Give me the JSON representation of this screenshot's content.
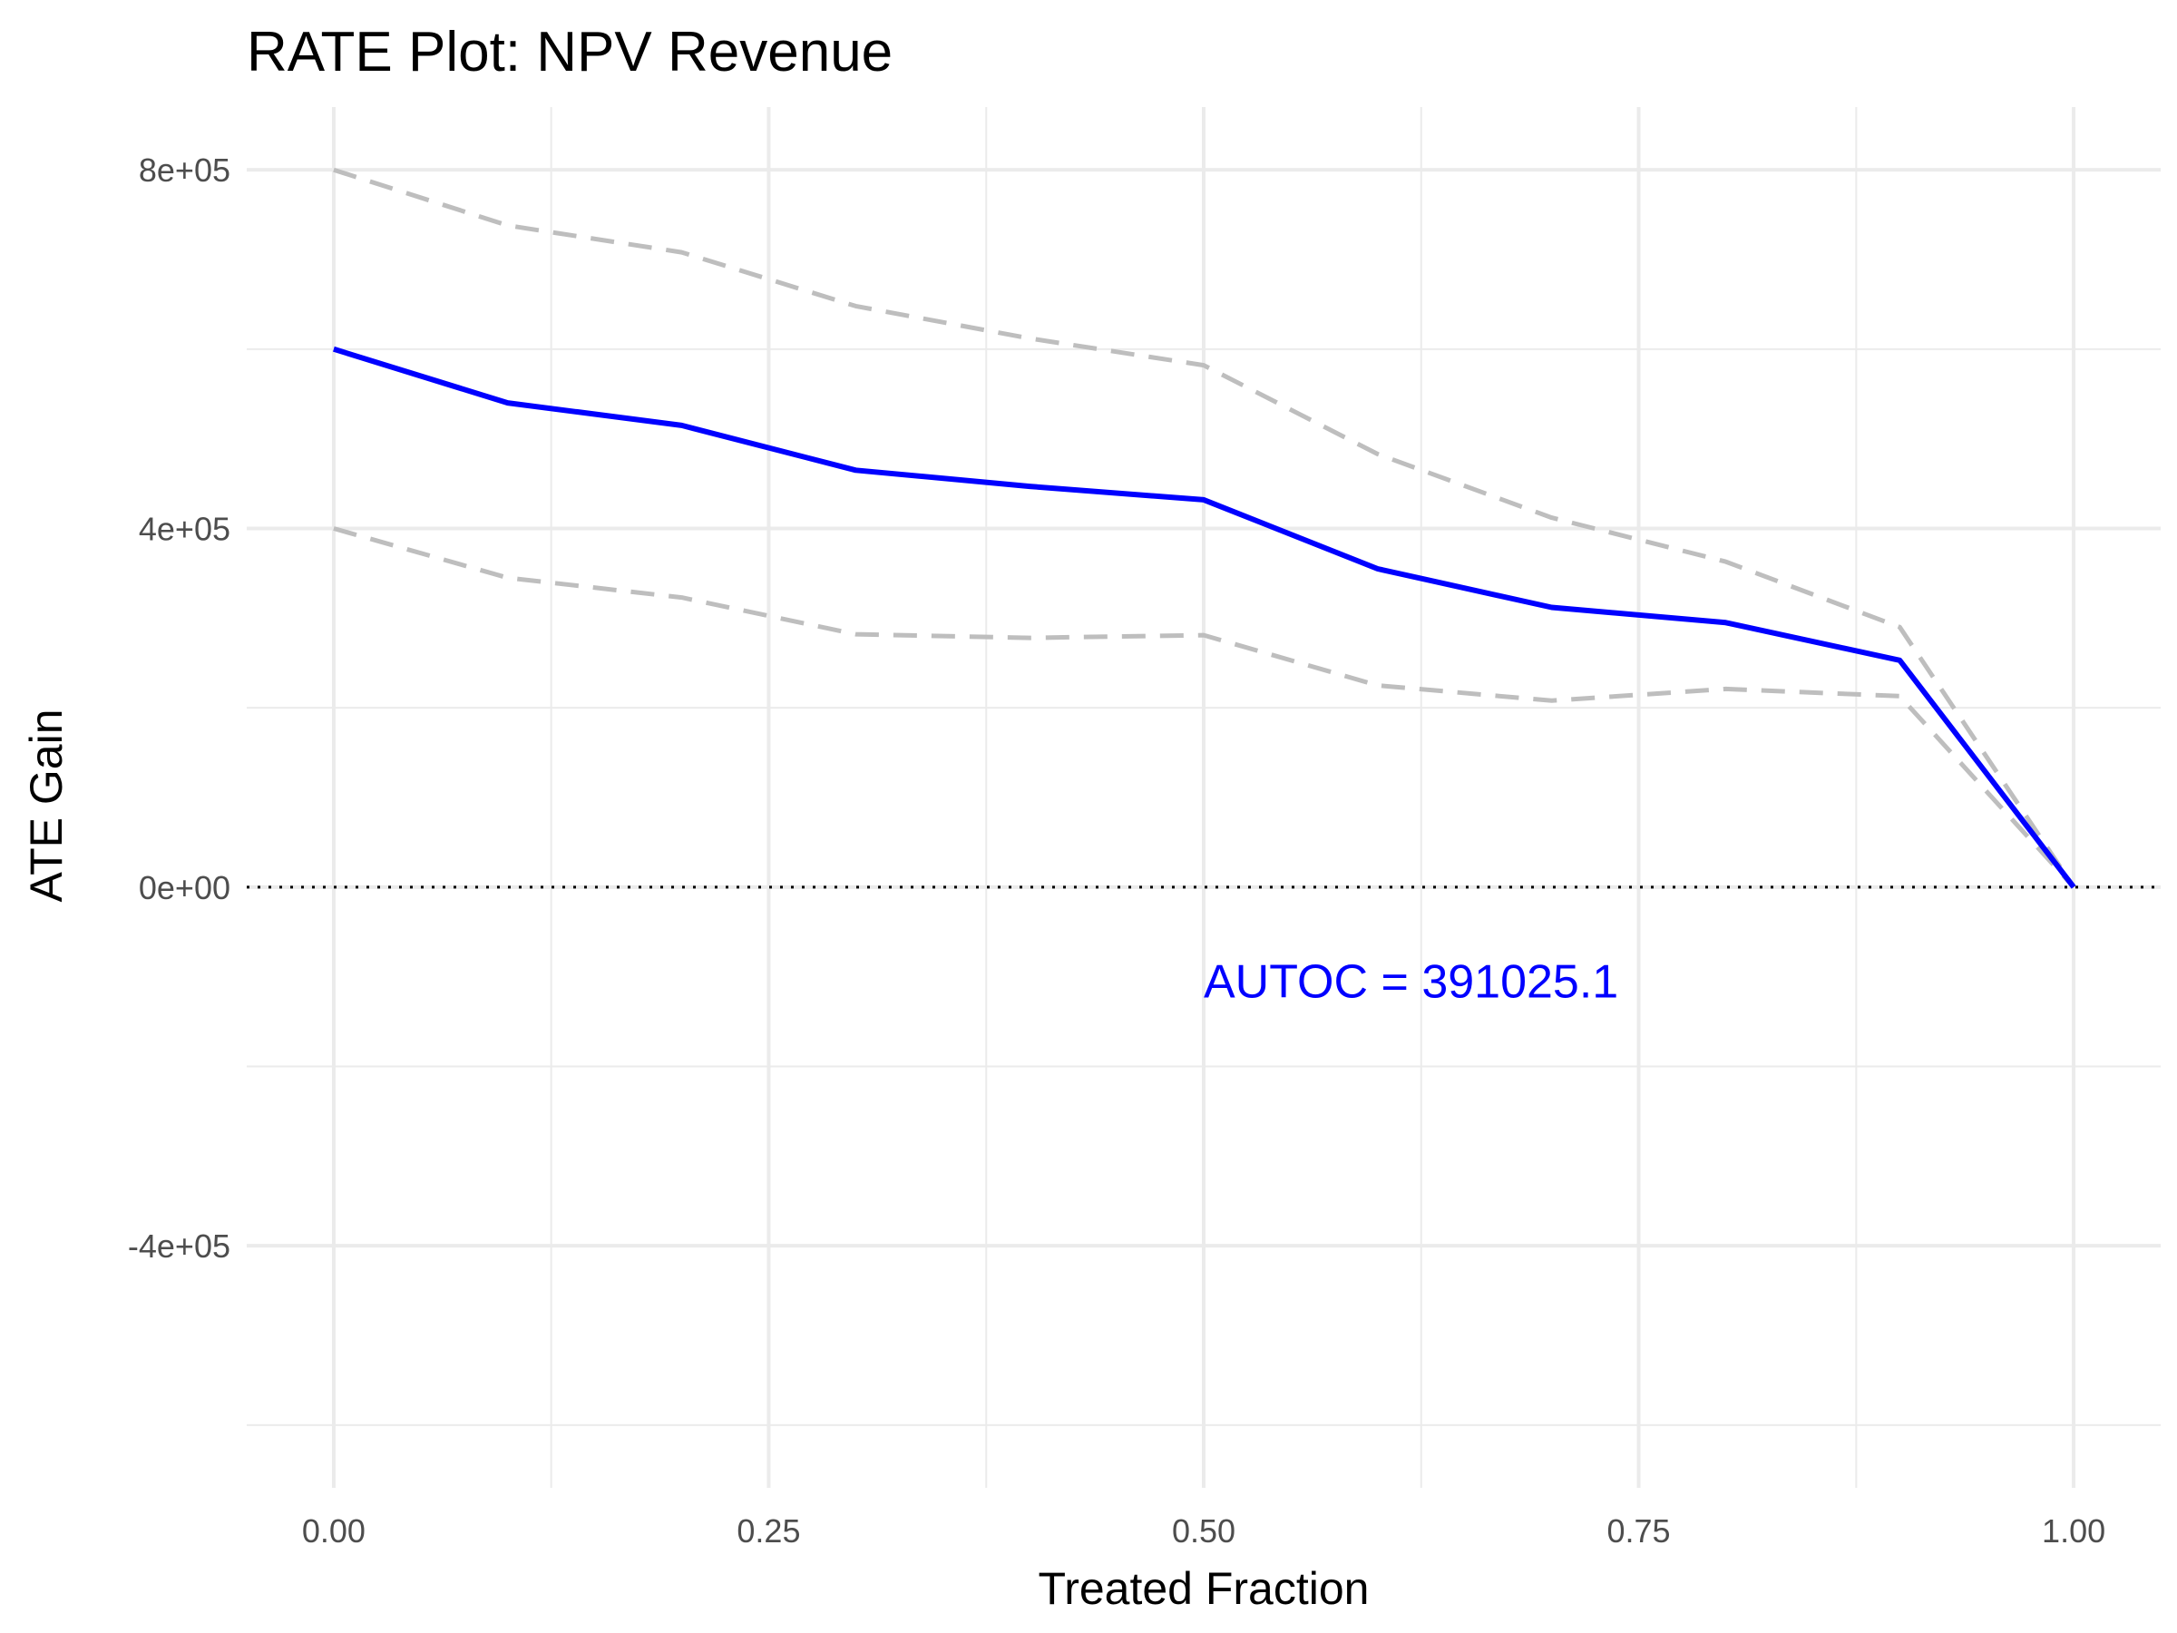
{
  "chart_data": {
    "type": "line",
    "title": "RATE Plot: NPV Revenue",
    "xlabel": "Treated Fraction",
    "ylabel": "ATE Gain",
    "xlim": [
      -0.05,
      1.05
    ],
    "ylim": [
      -670000,
      870000
    ],
    "x_ticks": [
      0,
      0.25,
      0.5,
      0.75,
      1
    ],
    "x_tick_labels": [
      "0.00",
      "0.25",
      "0.50",
      "0.75",
      "1.00"
    ],
    "y_ticks": [
      -400000,
      0,
      400000,
      800000
    ],
    "y_tick_labels": [
      "-4e+05",
      "0e+00",
      "4e+05",
      "8e+05"
    ],
    "grid": true,
    "x": [
      0.0,
      0.1,
      0.2,
      0.3,
      0.4,
      0.5,
      0.6,
      0.7,
      0.8,
      0.9,
      1.0
    ],
    "series": [
      {
        "role": "estimate",
        "color": "#0000ff",
        "style": "solid",
        "values": [
          600000,
          540000,
          515000,
          465000,
          447000,
          432000,
          355000,
          312000,
          295000,
          253000,
          0
        ]
      },
      {
        "role": "upper",
        "color": "#bebebe",
        "style": "dashed",
        "values": [
          800000,
          738000,
          708000,
          648000,
          612000,
          582000,
          483000,
          412000,
          363000,
          290000,
          0
        ]
      },
      {
        "role": "lower",
        "color": "#bebebe",
        "style": "dashed",
        "values": [
          400000,
          345000,
          323000,
          282000,
          278000,
          281000,
          225000,
          208000,
          221000,
          213000,
          0
        ]
      }
    ],
    "reference_line": {
      "y": 0,
      "style": "dotted",
      "color": "#000000"
    },
    "annotation": {
      "text": "AUTOC = 391025.1",
      "x": 0.5,
      "y": -105000,
      "color": "#0000ff"
    }
  }
}
